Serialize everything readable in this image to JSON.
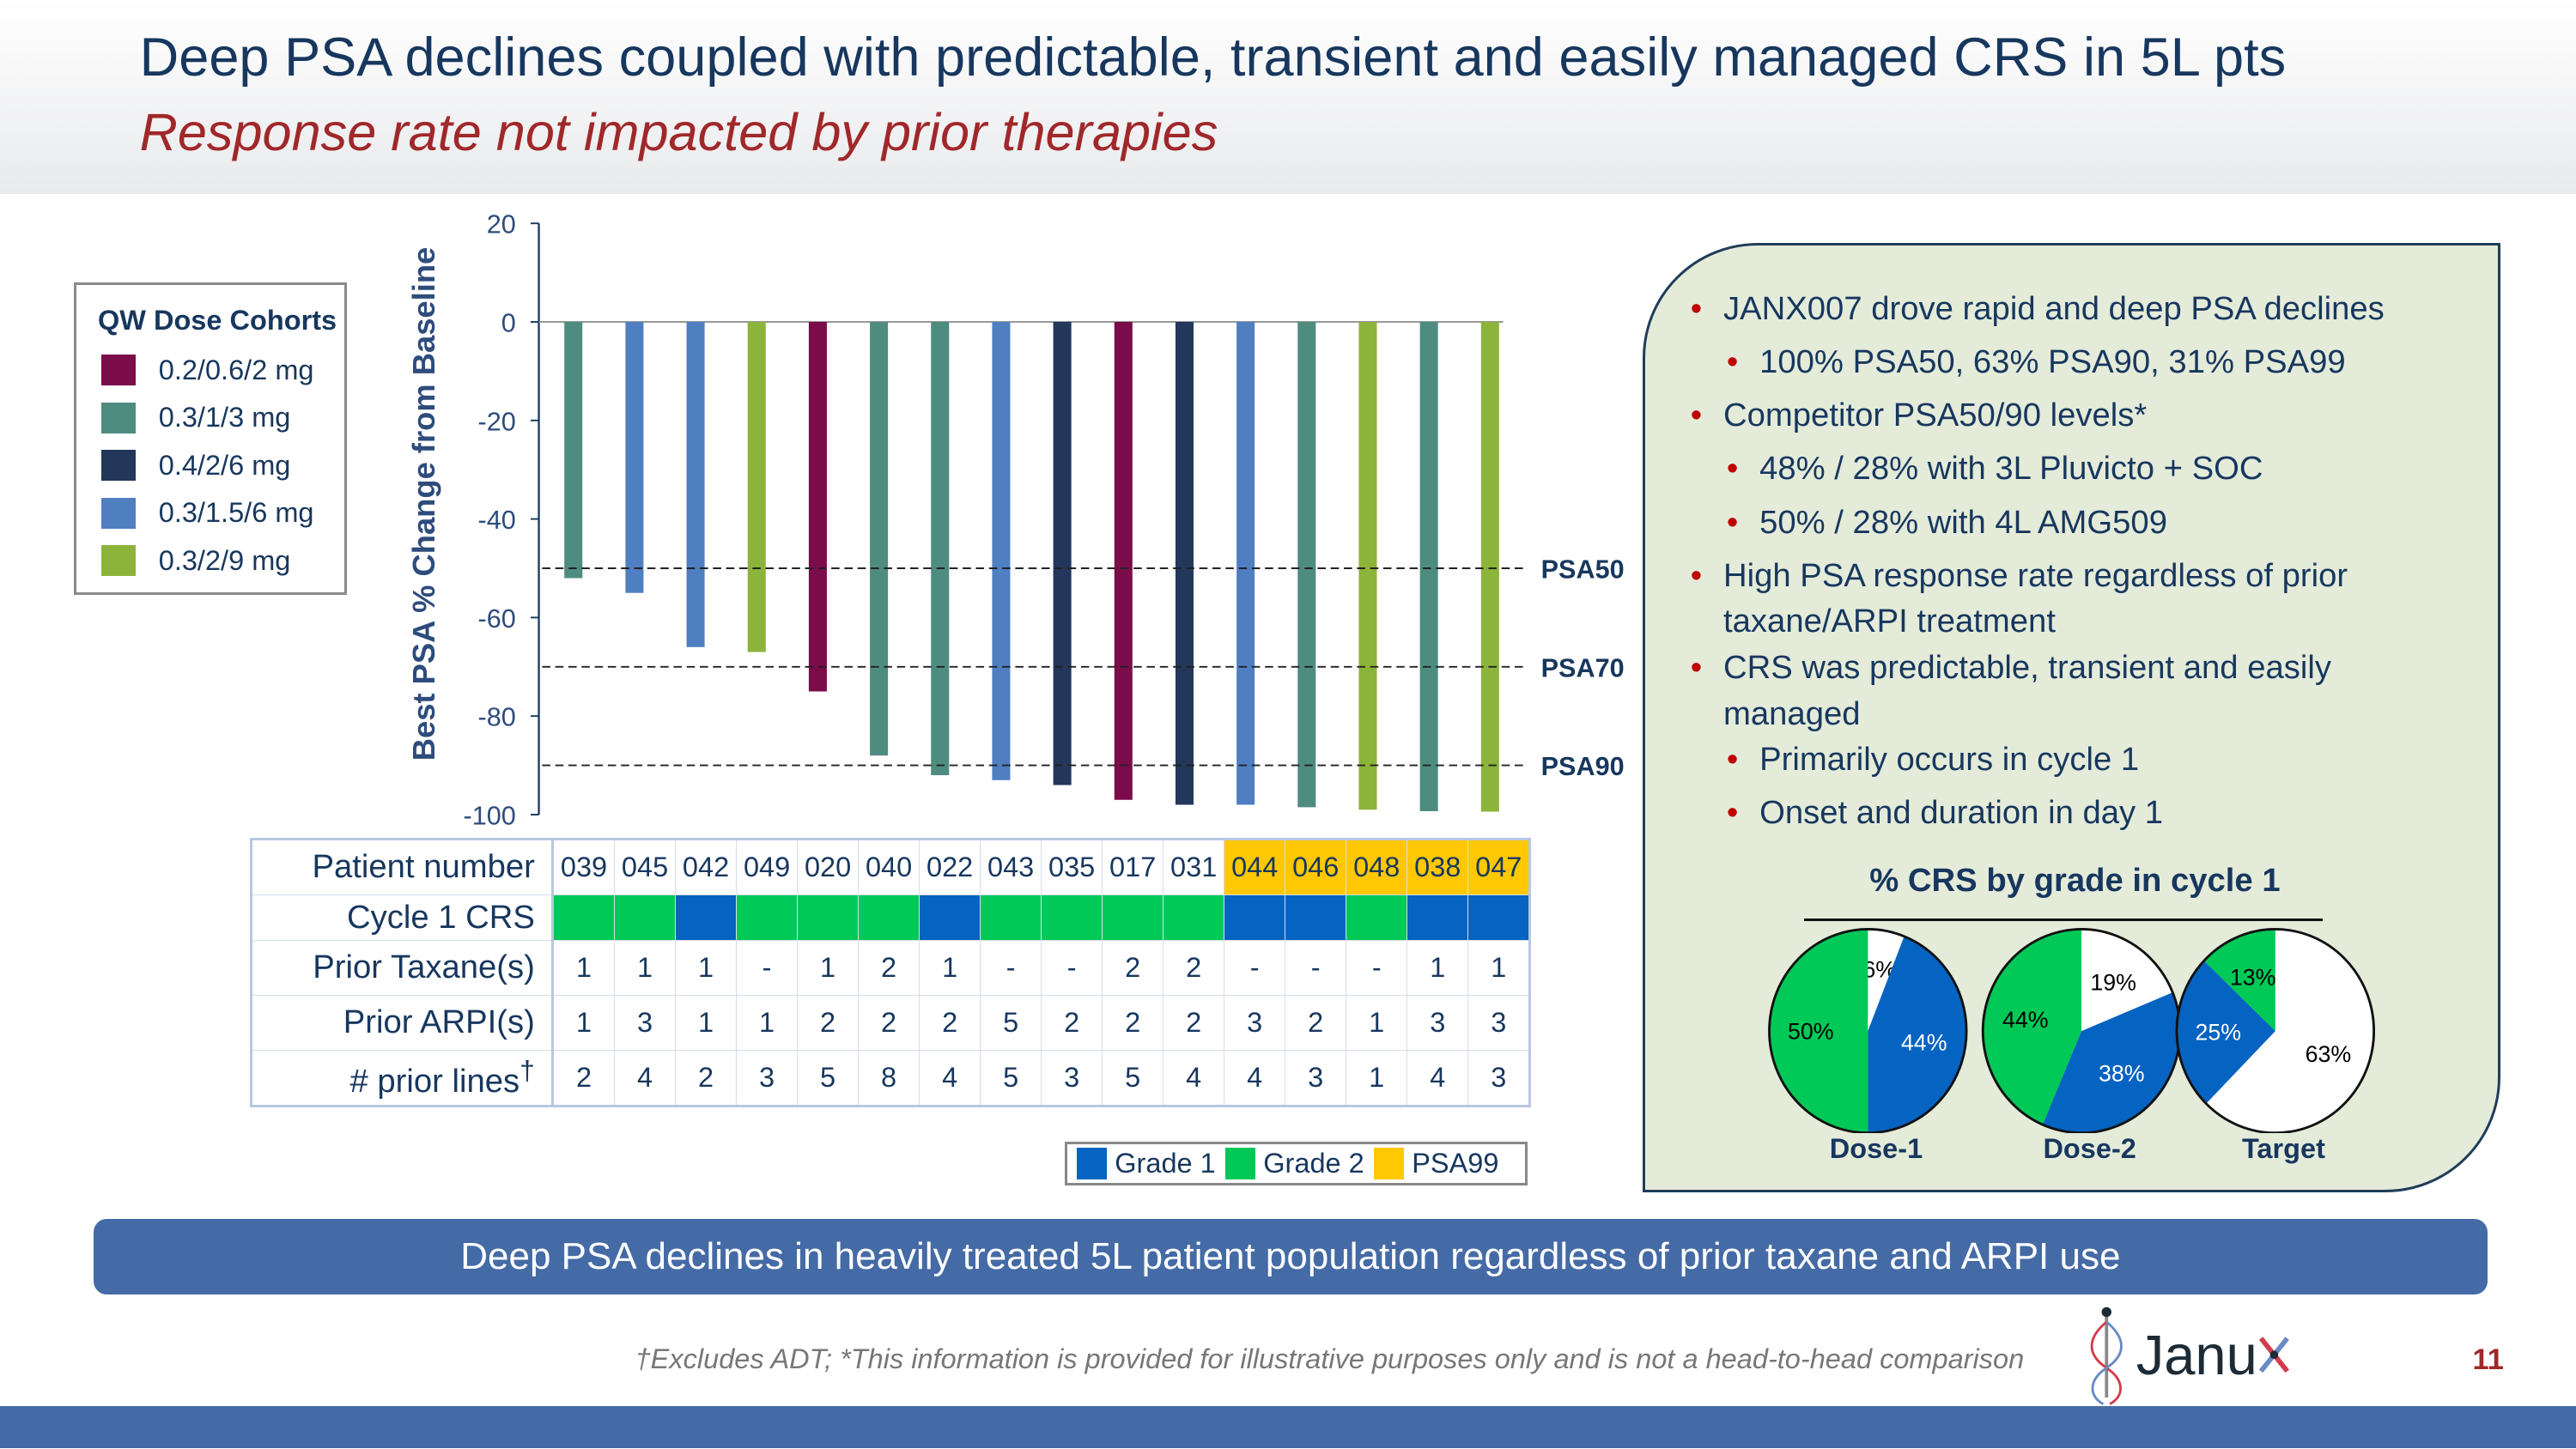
{
  "header": {
    "title": "Deep PSA declines coupled with predictable, transient and easily managed CRS in 5L pts",
    "subtitle": "Response rate not impacted by prior therapies"
  },
  "legend": {
    "title": "QW Dose Cohorts",
    "items": [
      {
        "label": "0.2/0.6/2 mg",
        "color": "#7B0C4A"
      },
      {
        "label": "0.3/1/3 mg",
        "color": "#4F8C80"
      },
      {
        "label": "0.4/2/6 mg",
        "color": "#22375A"
      },
      {
        "label": "0.3/1.5/6 mg",
        "color": "#4F7FC1"
      },
      {
        "label": "0.3/2/9 mg",
        "color": "#8DB43A"
      }
    ]
  },
  "chart_data": {
    "type": "bar",
    "ylabel": "Best PSA % Change from Baseline",
    "ylim": [
      -100,
      20
    ],
    "yticks": [
      "20",
      "0",
      "-20",
      "-40",
      "-60",
      "-80",
      "-100"
    ],
    "categories": [
      "039",
      "045",
      "042",
      "049",
      "020",
      "040",
      "022",
      "043",
      "035",
      "017",
      "031",
      "044",
      "046",
      "048",
      "038",
      "047"
    ],
    "values": [
      -52,
      -55,
      -66,
      -67,
      -75,
      -88,
      -92,
      -93,
      -94,
      -97,
      -98,
      -98,
      -98.5,
      -99,
      -99.3,
      -99.4
    ],
    "cohort": [
      "0.3/1/3 mg",
      "0.3/1.5/6 mg",
      "0.3/1.5/6 mg",
      "0.3/2/9 mg",
      "0.2/0.6/2 mg",
      "0.3/1/3 mg",
      "0.3/1/3 mg",
      "0.3/1.5/6 mg",
      "0.4/2/6 mg",
      "0.2/0.6/2 mg",
      "0.4/2/6 mg",
      "0.3/1.5/6 mg",
      "0.3/1/3 mg",
      "0.3/2/9 mg",
      "0.3/1/3 mg",
      "0.3/2/9 mg"
    ],
    "reference_lines": [
      {
        "label": "PSA50",
        "y": -50
      },
      {
        "label": "PSA70",
        "y": -70
      },
      {
        "label": "PSA90",
        "y": -90
      }
    ],
    "grid": false
  },
  "table": {
    "labels": [
      "Patient number",
      "Cycle 1 CRS",
      "Prior Taxane(s)",
      "Prior ARPI(s)",
      "# prior lines†"
    ],
    "patients": [
      "039",
      "045",
      "042",
      "049",
      "020",
      "040",
      "022",
      "043",
      "035",
      "017",
      "031",
      "044",
      "046",
      "048",
      "038",
      "047"
    ],
    "psa99": [
      false,
      false,
      false,
      false,
      false,
      false,
      false,
      false,
      false,
      false,
      false,
      true,
      true,
      true,
      true,
      true
    ],
    "crs_grade": [
      2,
      2,
      1,
      2,
      2,
      2,
      1,
      2,
      2,
      2,
      2,
      1,
      1,
      2,
      1,
      1
    ],
    "prior_taxanes": [
      "1",
      "1",
      "1",
      "-",
      "1",
      "2",
      "1",
      "-",
      "-",
      "2",
      "2",
      "-",
      "-",
      "-",
      "1",
      "1"
    ],
    "prior_arpi": [
      "1",
      "3",
      "1",
      "1",
      "2",
      "2",
      "2",
      "5",
      "2",
      "2",
      "2",
      "3",
      "2",
      "1",
      "3",
      "3"
    ],
    "prior_lines": [
      "2",
      "4",
      "2",
      "3",
      "5",
      "8",
      "4",
      "5",
      "3",
      "5",
      "4",
      "4",
      "3",
      "1",
      "4",
      "3"
    ]
  },
  "crs_legend": [
    {
      "label": "Grade 1",
      "color": "#0563C1"
    },
    {
      "label": "Grade 2",
      "color": "#00C957"
    },
    {
      "label": "PSA99",
      "color": "#FFC800"
    }
  ],
  "bullets": [
    {
      "text": "JANX007 drove rapid and deep PSA declines",
      "level": 1
    },
    {
      "text": "100% PSA50, 63% PSA90, 31% PSA99",
      "level": 2
    },
    {
      "text": "Competitor PSA50/90 levels*",
      "level": 1
    },
    {
      "text": "48% / 28% with 3L Pluvicto + SOC",
      "level": 2
    },
    {
      "text": "50% / 28% with 4L AMG509",
      "level": 2
    },
    {
      "text": "High PSA response rate regardless of prior",
      "level": 1
    },
    {
      "text": "taxane/ARPI treatment",
      "level": 0
    },
    {
      "text": "CRS was predictable, transient and easily",
      "level": 1
    },
    {
      "text": "managed",
      "level": 0
    },
    {
      "text": "Primarily occurs in cycle 1",
      "level": 2
    },
    {
      "text": "Onset and duration in day 1",
      "level": 2
    }
  ],
  "pies": {
    "title": "% CRS by grade in cycle 1",
    "charts": [
      {
        "label": "Dose-1",
        "slices": [
          {
            "name": "none",
            "value": 6,
            "text": "6%"
          },
          {
            "name": "Grade 1",
            "value": 44,
            "text": "44%"
          },
          {
            "name": "Grade 2",
            "value": 50,
            "text": "50%"
          }
        ]
      },
      {
        "label": "Dose-2",
        "slices": [
          {
            "name": "none",
            "value": 19,
            "text": "19%"
          },
          {
            "name": "Grade 1",
            "value": 38,
            "text": "38%"
          },
          {
            "name": "Grade 2",
            "value": 44,
            "text": "44%"
          }
        ]
      },
      {
        "label": "Target",
        "slices": [
          {
            "name": "none",
            "value": 63,
            "text": "63%"
          },
          {
            "name": "Grade 1",
            "value": 25,
            "text": "25%"
          },
          {
            "name": "Grade 2",
            "value": 13,
            "text": "13%"
          }
        ]
      }
    ]
  },
  "banner": "Deep PSA declines in heavily treated 5L patient population regardless of prior taxane and ARPI use",
  "footnote": "†Excludes ADT; *This information is provided for illustrative purposes only and is not a head-to-head comparison",
  "logo": "Janux",
  "page_number": "11"
}
